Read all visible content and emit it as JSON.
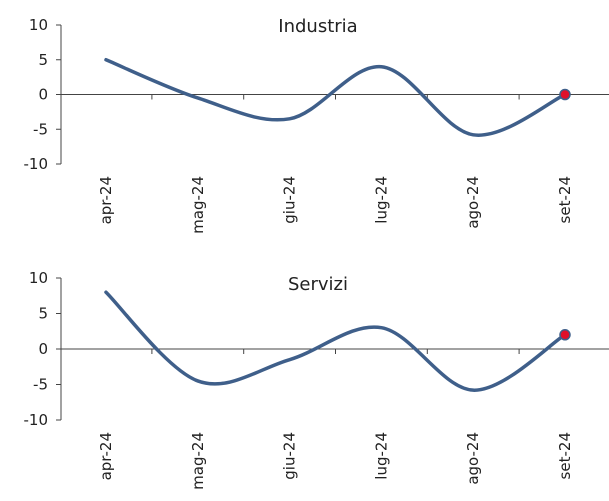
{
  "chart_data": [
    {
      "type": "line",
      "title": "Industria",
      "categories": [
        "apr-24",
        "mag-24",
        "giu-24",
        "lug-24",
        "ago-24",
        "set-24"
      ],
      "x": [
        0,
        0.5,
        1,
        1.5,
        2,
        2.5,
        3,
        3.5,
        4,
        4.5,
        5
      ],
      "series": [
        {
          "values": [
            5,
            -0.5,
            -3.5,
            4,
            -5.8,
            0
          ],
          "color": "#3f5f8a"
        }
      ],
      "yticks": [
        10,
        5,
        0,
        -5,
        -10
      ],
      "ylim": [
        -10,
        10
      ],
      "last_point_marker": {
        "color": "#e0102a",
        "edge": "#3f5f8a"
      },
      "grid": false,
      "legend": "none"
    },
    {
      "type": "line",
      "title": "Servizi",
      "categories": [
        "apr-24",
        "mag-24",
        "giu-24",
        "lug-24",
        "ago-24",
        "set-24"
      ],
      "series": [
        {
          "values": [
            8,
            -4.5,
            -1.5,
            3,
            -5.8,
            2
          ],
          "color": "#3f5f8a"
        }
      ],
      "yticks": [
        10,
        5,
        0,
        -5,
        -10
      ],
      "ylim": [
        -10,
        10
      ],
      "last_point_marker": {
        "color": "#e0102a",
        "edge": "#3f5f8a"
      },
      "grid": false,
      "legend": "none"
    }
  ]
}
